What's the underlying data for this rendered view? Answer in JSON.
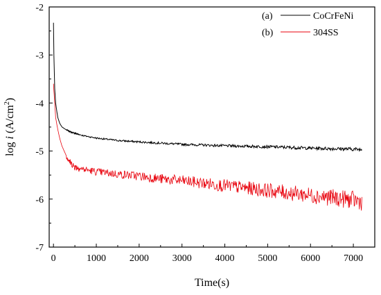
{
  "chart_data": {
    "type": "line",
    "title": "",
    "xlabel": "Time(s)",
    "ylabel": {
      "prefix": "log ",
      "italic": "i",
      "unit_open": " (A/cm",
      "sup": "2",
      "unit_close": ")"
    },
    "xlim": [
      -100,
      7500
    ],
    "ylim": [
      -7,
      -2
    ],
    "x_ticks": [
      0,
      1000,
      2000,
      3000,
      4000,
      5000,
      6000,
      7000
    ],
    "y_ticks": [
      -7,
      -6,
      -5,
      -4,
      -3,
      -2
    ],
    "x_tick_labels": [
      "0",
      "1000",
      "2000",
      "3000",
      "4000",
      "5000",
      "6000",
      "7000"
    ],
    "y_tick_labels": [
      "-7",
      "-6",
      "-5",
      "-4",
      "-3",
      "-2"
    ],
    "grid": false,
    "legend_placement": "top-right",
    "series": [
      {
        "name": "CoCrFeNi",
        "label_prefix": "(a)",
        "color": "#000000",
        "noise": 0.012,
        "x": [
          0,
          10,
          30,
          50,
          100,
          150,
          200,
          300,
          400,
          500,
          700,
          1000,
          1500,
          2000,
          3000,
          4000,
          5000,
          6000,
          7000,
          7200
        ],
        "y": [
          -2.33,
          -3.0,
          -3.7,
          -4.0,
          -4.3,
          -4.43,
          -4.5,
          -4.56,
          -4.6,
          -4.63,
          -4.68,
          -4.73,
          -4.78,
          -4.81,
          -4.86,
          -4.89,
          -4.91,
          -4.94,
          -4.96,
          -4.97
        ]
      },
      {
        "name": "304SS",
        "label_prefix": "(b)",
        "color": "#e8000b",
        "noise": 0.06,
        "x": [
          0,
          10,
          30,
          50,
          100,
          150,
          200,
          300,
          400,
          500,
          700,
          1000,
          1500,
          2000,
          2500,
          3000,
          4000,
          5000,
          6000,
          7000,
          7200
        ],
        "y": [
          -3.6,
          -3.75,
          -4.0,
          -4.3,
          -4.55,
          -4.75,
          -4.9,
          -5.1,
          -5.25,
          -5.33,
          -5.38,
          -5.43,
          -5.48,
          -5.52,
          -5.58,
          -5.62,
          -5.72,
          -5.82,
          -5.92,
          -6.02,
          -6.05
        ]
      }
    ]
  }
}
